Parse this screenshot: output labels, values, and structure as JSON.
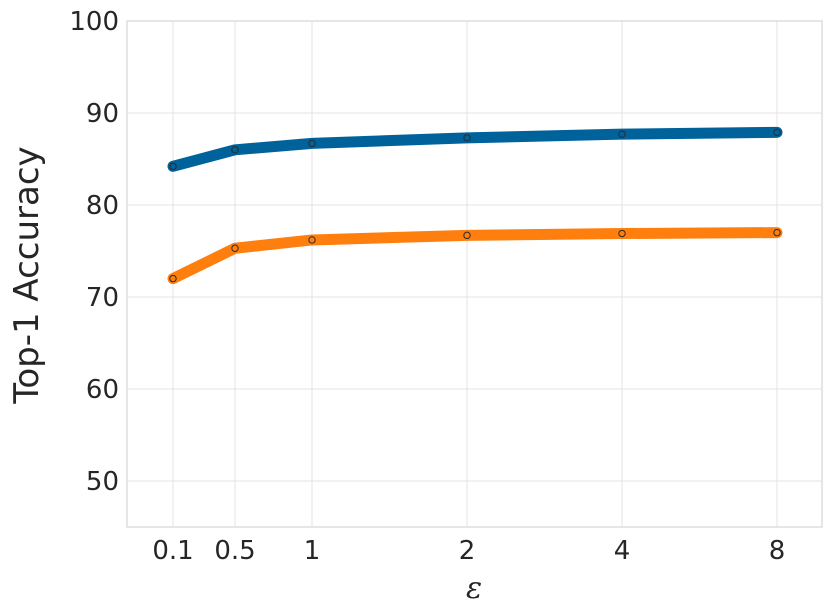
{
  "chart_data": {
    "type": "line",
    "xlabel": "ε",
    "ylabel": "Top-1 Accuracy",
    "x": [
      "0.1",
      "0.5",
      "1",
      "2",
      "4",
      "8"
    ],
    "ylim": [
      45,
      100
    ],
    "yticks": [
      50,
      60,
      70,
      80,
      90,
      100
    ],
    "grid": true,
    "series": [
      {
        "color": "#00629b",
        "values": [
          84.2,
          86.0,
          86.7,
          87.3,
          87.7,
          87.9
        ]
      },
      {
        "color": "#ff7f0e",
        "values": [
          72.0,
          75.3,
          76.2,
          76.7,
          76.9,
          77.0
        ]
      }
    ]
  }
}
